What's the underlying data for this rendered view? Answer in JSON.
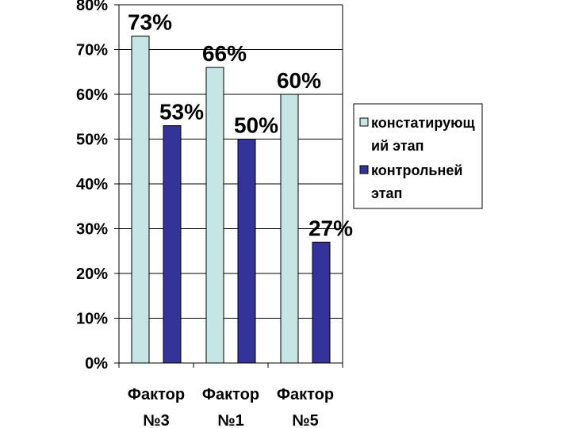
{
  "chart_data": {
    "type": "bar",
    "categories": [
      [
        "Фактор",
        "№3"
      ],
      [
        "Фактор",
        "№1"
      ],
      [
        "Фактор",
        "№5"
      ]
    ],
    "series": [
      {
        "name": [
          "констатирующ",
          "ий этап"
        ],
        "values": [
          73,
          66,
          60
        ],
        "labels": [
          "73%",
          "66%",
          "60%"
        ],
        "color": "#c6e6e6"
      },
      {
        "name": [
          "контрольней",
          "этап"
        ],
        "values": [
          53,
          50,
          27
        ],
        "labels": [
          "53%",
          "50%",
          "27%"
        ],
        "color": "#333399"
      }
    ],
    "ylim": [
      0,
      80
    ],
    "yticks": [
      "0%",
      "10%",
      "20%",
      "30%",
      "40%",
      "50%",
      "60%",
      "70%",
      "80%"
    ],
    "grid": true,
    "legend_position": "right",
    "title": "",
    "xlabel": "",
    "ylabel": ""
  }
}
